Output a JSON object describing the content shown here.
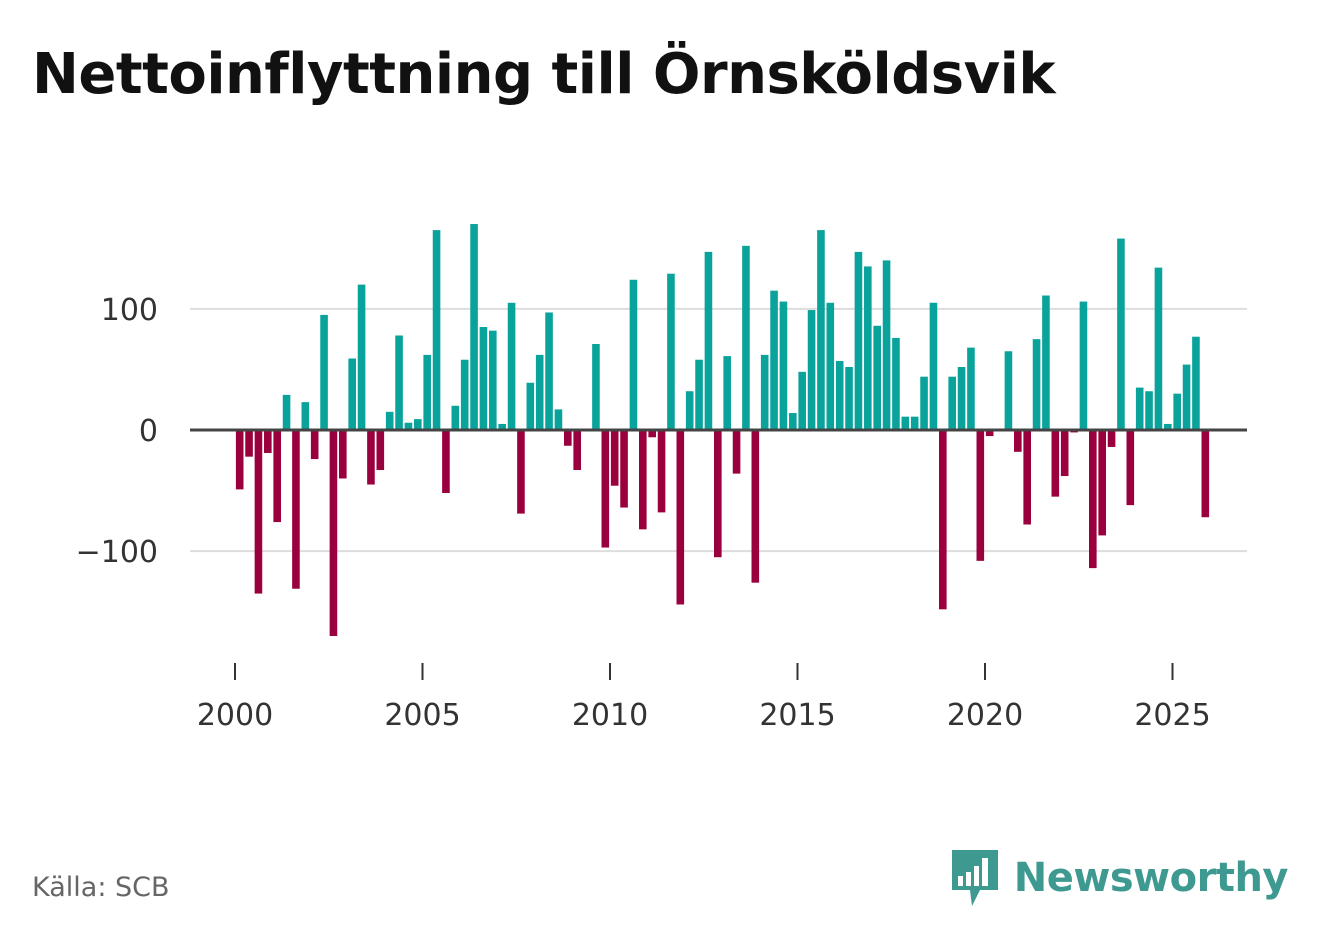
{
  "title": "Nettoinflyttning till Örnsköldsvik",
  "source": "Källa: SCB",
  "brand": {
    "name": "Newsworthy"
  },
  "colors": {
    "positive": "#0aa39b",
    "negative": "#9a003d",
    "grid": "#dddddd",
    "zero": "#444444"
  },
  "chart_data": {
    "type": "bar",
    "title": "Nettoinflyttning till Örnsköldsvik",
    "xlabel": "",
    "ylabel": "",
    "ylim": [
      -180,
      180
    ],
    "xlim": [
      1999,
      2027
    ],
    "x_ticks": [
      2000,
      2005,
      2010,
      2015,
      2020,
      2025
    ],
    "x_tick_labels": [
      "2000",
      "2005",
      "2010",
      "2015",
      "2020",
      "2025"
    ],
    "y_ticks": [
      -100,
      0,
      100
    ],
    "y_tick_labels": [
      "−100",
      "0",
      "100"
    ],
    "grid": true,
    "legend": "none",
    "start": 2000,
    "frequency": "quarterly",
    "values": [
      -49,
      -22,
      -135,
      -19,
      -76,
      29,
      -131,
      23,
      -24,
      95,
      -170,
      -40,
      59,
      120,
      -45,
      -33,
      15,
      78,
      6,
      9,
      62,
      165,
      -52,
      20,
      58,
      170,
      85,
      82,
      5,
      105,
      -69,
      39,
      62,
      97,
      17,
      -13,
      -33,
      0,
      71,
      -97,
      -46,
      -64,
      124,
      -82,
      -6,
      -68,
      129,
      -144,
      32,
      58,
      147,
      -105,
      61,
      -36,
      152,
      -126,
      62,
      115,
      106,
      14,
      48,
      99,
      165,
      105,
      57,
      52,
      147,
      135,
      86,
      140,
      76,
      11,
      11,
      44,
      105,
      -148,
      44,
      52,
      68,
      -108,
      -5,
      0,
      65,
      -18,
      -78,
      75,
      111,
      -55,
      -38,
      -2,
      106,
      -114,
      -87,
      -14,
      158,
      -62,
      35,
      32,
      134,
      5,
      30,
      54,
      77,
      -72
    ]
  }
}
